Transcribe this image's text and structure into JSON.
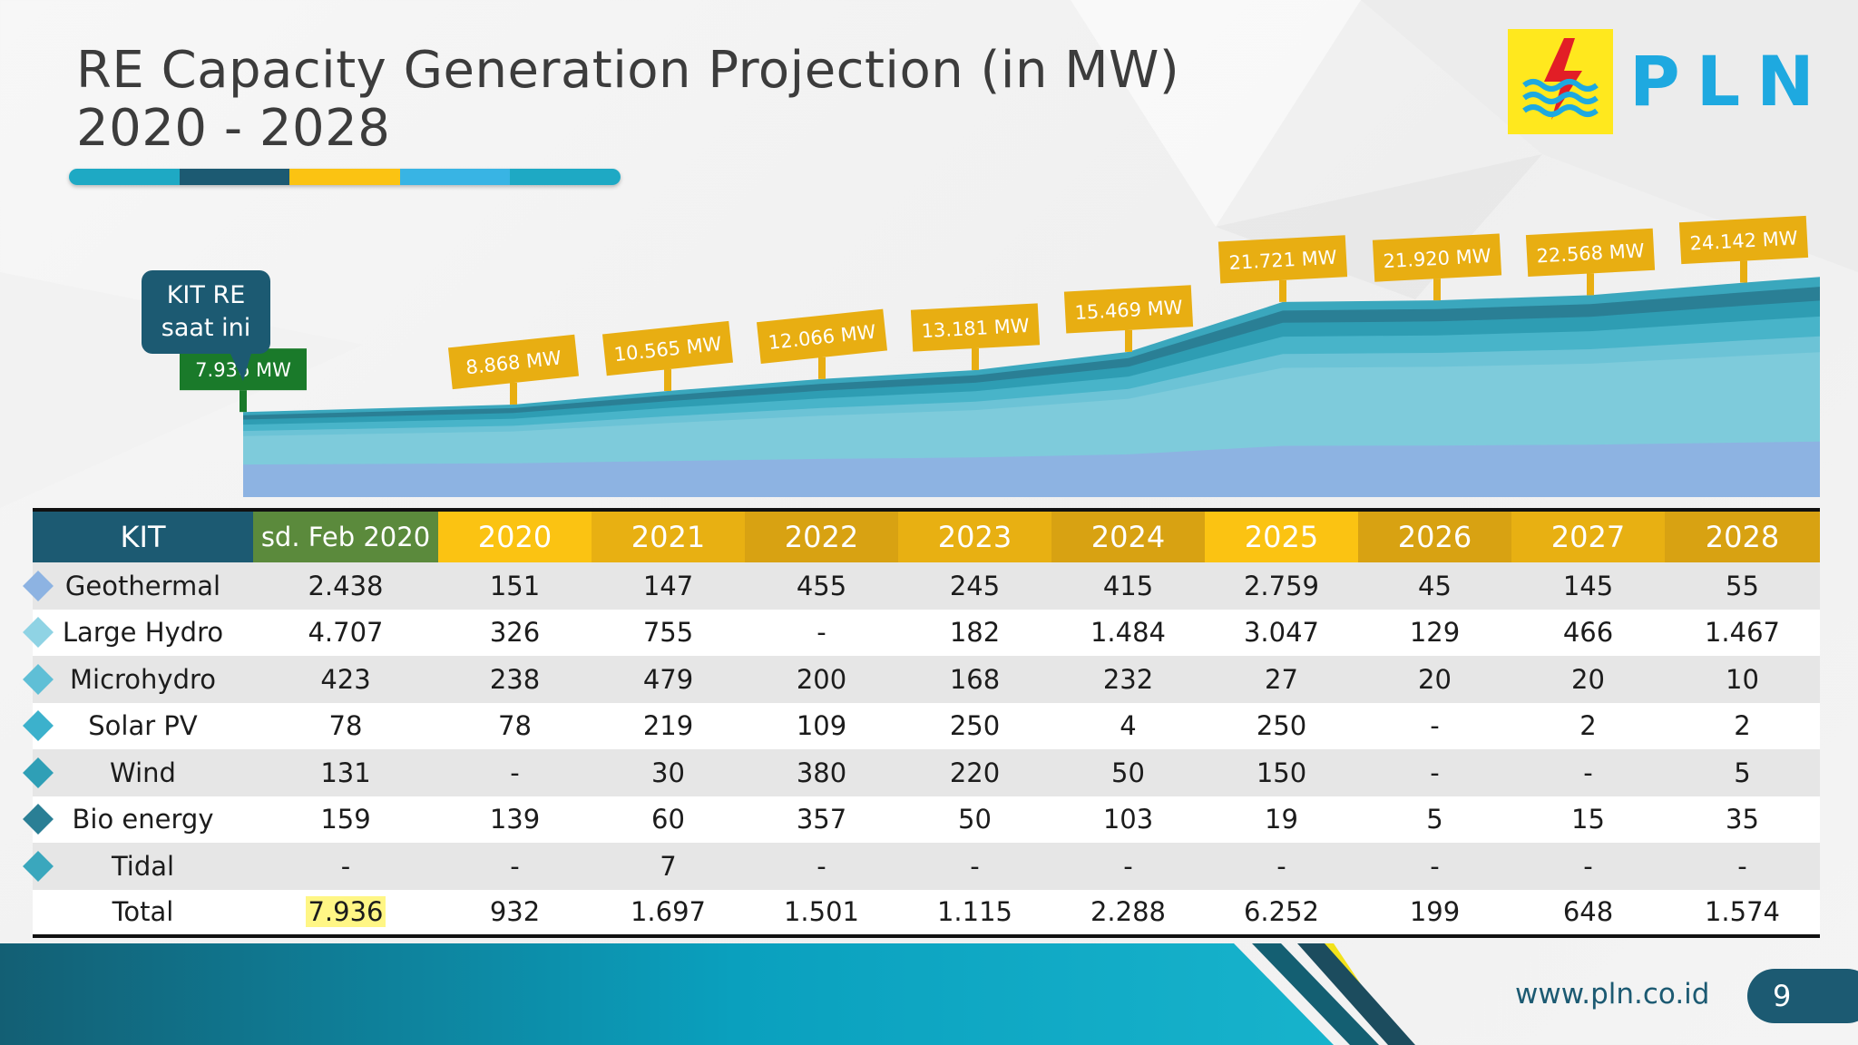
{
  "title": {
    "line1": "RE Capacity Generation Projection (in  MW)",
    "line2": "2020 - 2028"
  },
  "title_bar_colors": [
    "#1ea9c4",
    "#1c5a72",
    "#fbc312",
    "#38b4e4",
    "#1ea9c4"
  ],
  "logo": {
    "text": "PLN",
    "icon": "pln-lightning-wave-icon",
    "mark_color": "#ffe81e",
    "text_color": "#1ea9e0"
  },
  "callout": {
    "line1": "KIT RE",
    "line2": "saat ini"
  },
  "chart_data": {
    "type": "area",
    "x": [
      "sd. Feb 2020",
      "2020",
      "2021",
      "2022",
      "2023",
      "2024",
      "2025",
      "2026",
      "2027",
      "2028"
    ],
    "totals": [
      7936,
      8868,
      10565,
      12066,
      13181,
      15469,
      21721,
      21920,
      22568,
      24142
    ],
    "total_labels": [
      "7.936 MW",
      "8.868 MW",
      "10.565 MW",
      "12.066 MW",
      "13.181 MW",
      "15.469 MW",
      "21.721 MW",
      "21.920 MW",
      "22.568 MW",
      "24.142 MW"
    ],
    "current_label_color": "#1a7a2a",
    "projection_label_color": "#e8ae12",
    "series": [
      {
        "name": "Geothermal",
        "values": [
          2438,
          151,
          147,
          455,
          245,
          415,
          2759,
          45,
          145,
          55
        ],
        "color": "#8db3e2"
      },
      {
        "name": "Large Hydro",
        "values": [
          4707,
          326,
          755,
          0,
          182,
          1484,
          3047,
          129,
          466,
          1467
        ],
        "color": "#7ecbdb"
      },
      {
        "name": "Microhydro",
        "values": [
          423,
          238,
          479,
          200,
          168,
          232,
          27,
          20,
          20,
          10
        ],
        "color": "#5fbfd0"
      },
      {
        "name": "Solar PV",
        "values": [
          78,
          78,
          219,
          109,
          250,
          4,
          250,
          0,
          2,
          2
        ],
        "color": "#3fb0c6"
      },
      {
        "name": "Wind",
        "values": [
          131,
          0,
          30,
          380,
          220,
          50,
          150,
          0,
          0,
          5
        ],
        "color": "#2e9db3"
      },
      {
        "name": "Bio energy",
        "values": [
          159,
          139,
          60,
          357,
          50,
          103,
          19,
          5,
          15,
          35
        ],
        "color": "#2a7f95"
      },
      {
        "name": "Tidal",
        "values": [
          0,
          0,
          7,
          0,
          0,
          0,
          0,
          0,
          0,
          0
        ],
        "color": "#3aa7bd"
      }
    ]
  },
  "table": {
    "header": [
      "KIT",
      "sd. Feb 2020",
      "2020",
      "2021",
      "2022",
      "2023",
      "2024",
      "2025",
      "2026",
      "2027",
      "2028"
    ],
    "header_colors": [
      "#1c5a72",
      "#5b8a3c",
      "#fbc312",
      "#e8b012",
      "#d8a212",
      "#e8b012",
      "#d8a212",
      "#fbc312",
      "#d8a212",
      "#e8b012",
      "#d8a212"
    ],
    "rows": [
      {
        "label": "Geothermal",
        "diamond": "#8db3e2",
        "cells": [
          "2.438",
          "151",
          "147",
          "455",
          "245",
          "415",
          "2.759",
          "45",
          "145",
          "55"
        ]
      },
      {
        "label": "Large Hydro",
        "diamond": "#8fd3e4",
        "cells": [
          "4.707",
          "326",
          "755",
          "-",
          "182",
          "1.484",
          "3.047",
          "129",
          "466",
          "1.467"
        ]
      },
      {
        "label": "Microhydro",
        "diamond": "#5fbfd6",
        "cells": [
          "423",
          "238",
          "479",
          "200",
          "168",
          "232",
          "27",
          "20",
          "20",
          "10"
        ]
      },
      {
        "label": "Solar PV",
        "diamond": "#3cb1cc",
        "cells": [
          "78",
          "78",
          "219",
          "109",
          "250",
          "4",
          "250",
          "-",
          "2",
          "2"
        ]
      },
      {
        "label": "Wind",
        "diamond": "#2f9fb6",
        "cells": [
          "131",
          "-",
          "30",
          "380",
          "220",
          "50",
          "150",
          "-",
          "-",
          "5"
        ]
      },
      {
        "label": "Bio energy",
        "diamond": "#2a7f95",
        "cells": [
          "159",
          "139",
          "60",
          "357",
          "50",
          "103",
          "19",
          "5",
          "15",
          "35"
        ]
      },
      {
        "label": "Tidal",
        "diamond": "#3aa7bd",
        "cells": [
          "-",
          "-",
          "7",
          "-",
          "-",
          "-",
          "-",
          "-",
          "-",
          "-"
        ]
      }
    ],
    "total": {
      "label": "Total",
      "cells": [
        "7.936",
        "932",
        "1.697",
        "1.501",
        "1.115",
        "2.288",
        "6.252",
        "199",
        "648",
        "1.574"
      ]
    }
  },
  "footer": {
    "url": "www.pln.co.id",
    "page": "9"
  }
}
